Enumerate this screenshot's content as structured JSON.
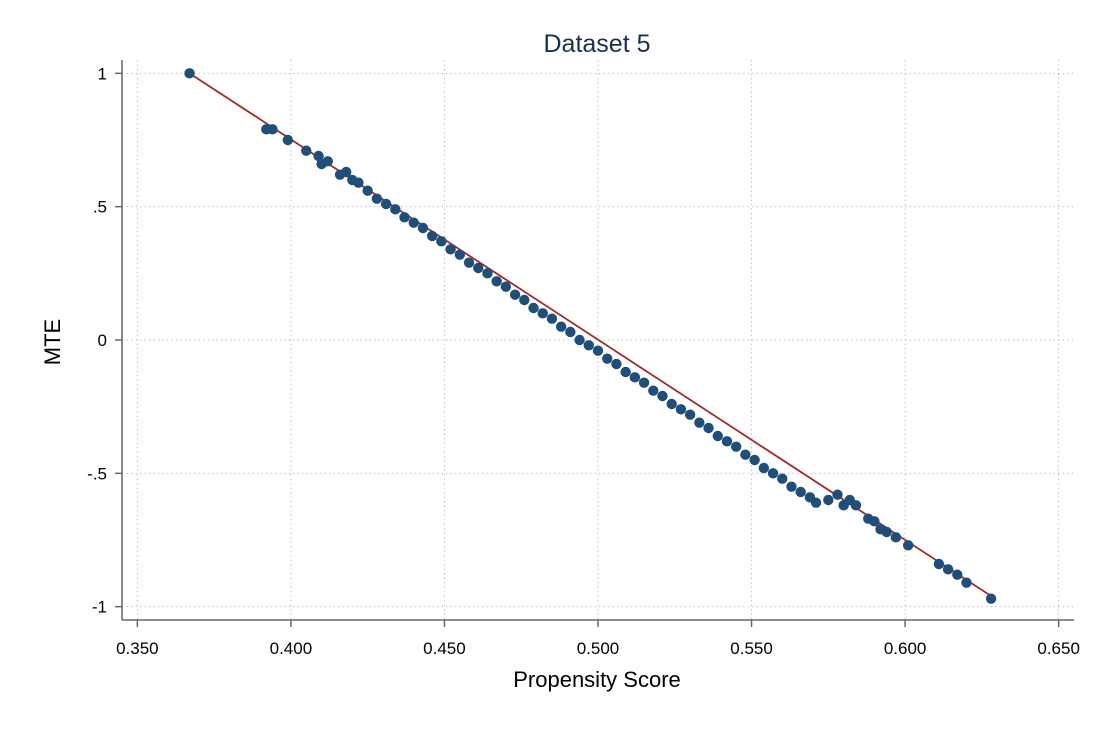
{
  "chart_data": {
    "type": "scatter",
    "title": "Dataset 5",
    "xlabel": "Propensity Score",
    "ylabel": "MTE",
    "xlim": [
      0.345,
      0.655
    ],
    "ylim": [
      -1.05,
      1.05
    ],
    "x_ticks": [
      0.35,
      0.4,
      0.45,
      0.5,
      0.55,
      0.6,
      0.65
    ],
    "x_tick_labels": [
      "0.350",
      "0.400",
      "0.450",
      "0.500",
      "0.550",
      "0.600",
      "0.650"
    ],
    "y_ticks": [
      1,
      0.5,
      0,
      -0.5,
      -1
    ],
    "y_tick_labels": [
      "1",
      ".5",
      "0",
      "-.5",
      "-1"
    ],
    "grid": true,
    "legend": "none",
    "colors": {
      "points": "#1f4e79",
      "fit_line": "#a52a2a",
      "grid": "#c0c0c0",
      "title": "#1a2e4f"
    },
    "fit_line": {
      "x": [
        0.367,
        0.628
      ],
      "y": [
        1.0,
        -0.96
      ]
    },
    "series": [
      {
        "x": [
          0.367,
          0.392,
          0.394,
          0.399,
          0.405,
          0.409,
          0.41,
          0.412,
          0.416,
          0.418,
          0.42,
          0.422,
          0.425,
          0.428,
          0.431,
          0.434,
          0.437,
          0.44,
          0.443,
          0.446,
          0.449,
          0.452,
          0.455,
          0.458,
          0.461,
          0.464,
          0.467,
          0.47,
          0.473,
          0.476,
          0.479,
          0.482,
          0.485,
          0.488,
          0.491,
          0.494,
          0.497,
          0.5,
          0.503,
          0.506,
          0.509,
          0.512,
          0.515,
          0.518,
          0.521,
          0.524,
          0.527,
          0.53,
          0.533,
          0.536,
          0.539,
          0.542,
          0.545,
          0.548,
          0.551,
          0.554,
          0.557,
          0.56,
          0.563,
          0.566,
          0.569,
          0.571,
          0.575,
          0.578,
          0.58,
          0.582,
          0.584,
          0.588,
          0.59,
          0.592,
          0.594,
          0.597,
          0.601,
          0.611,
          0.614,
          0.617,
          0.62,
          0.628
        ],
        "y": [
          1.0,
          0.79,
          0.79,
          0.75,
          0.71,
          0.69,
          0.66,
          0.67,
          0.62,
          0.63,
          0.6,
          0.59,
          0.56,
          0.53,
          0.51,
          0.49,
          0.46,
          0.44,
          0.42,
          0.39,
          0.37,
          0.34,
          0.32,
          0.29,
          0.27,
          0.25,
          0.22,
          0.2,
          0.17,
          0.15,
          0.12,
          0.1,
          0.08,
          0.05,
          0.03,
          0.0,
          -0.02,
          -0.04,
          -0.07,
          -0.09,
          -0.12,
          -0.14,
          -0.16,
          -0.19,
          -0.21,
          -0.24,
          -0.26,
          -0.28,
          -0.31,
          -0.33,
          -0.36,
          -0.38,
          -0.4,
          -0.43,
          -0.45,
          -0.48,
          -0.5,
          -0.52,
          -0.55,
          -0.57,
          -0.59,
          -0.61,
          -0.6,
          -0.58,
          -0.62,
          -0.6,
          -0.62,
          -0.67,
          -0.68,
          -0.71,
          -0.72,
          -0.74,
          -0.77,
          -0.84,
          -0.86,
          -0.88,
          -0.91,
          -0.97
        ]
      }
    ]
  }
}
